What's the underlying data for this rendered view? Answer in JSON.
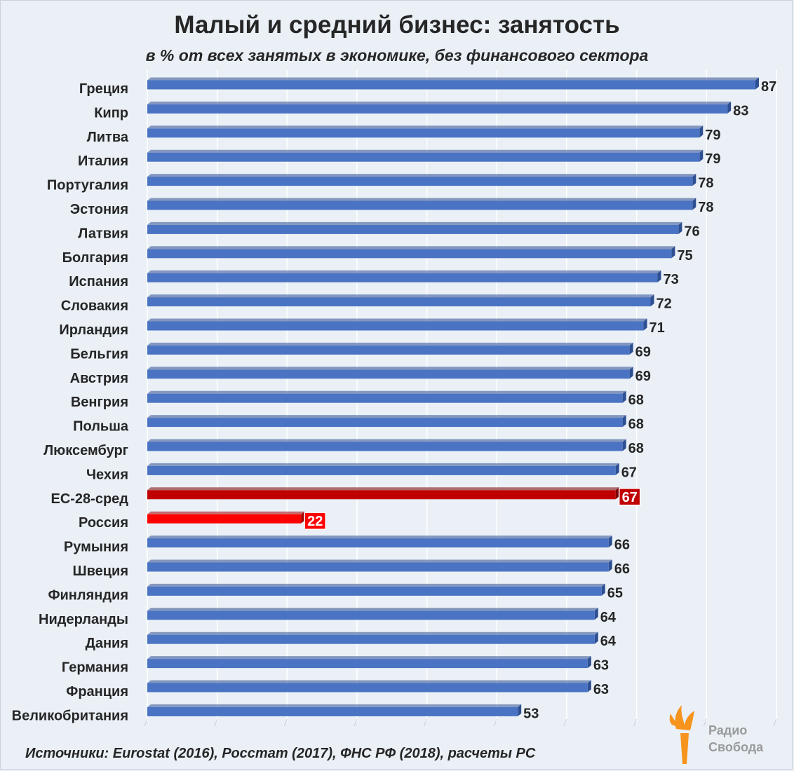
{
  "title": "Малый и средний бизнес: занятость",
  "subtitle": "в % от всех занятых в экономике, без финансового сектора",
  "source": "Источники: Eurostat (2016), Росстат (2017), ФНС РФ (2018), расчеты РС",
  "logo": {
    "line1": "Радио",
    "line2": "Свобода"
  },
  "colors": {
    "default_bar": "#4a73c3",
    "eu_average_bar": "#c00000",
    "russia_bar": "#ff0000",
    "logo_orange": "#f7941d",
    "logo_gray": "#9a9a9a"
  },
  "chart_data": {
    "type": "bar",
    "orientation": "horizontal",
    "title": "Малый и средний бизнес: занятость",
    "subtitle": "в % от всех занятых в экономике, без финансового сектора",
    "xlabel": "",
    "ylabel": "",
    "xlim": [
      0,
      90
    ],
    "grid": true,
    "categories": [
      "Греция",
      "Кипр",
      "Литва",
      "Италия",
      "Португалия",
      "Эстония",
      "Латвия",
      "Болгария",
      "Испания",
      "Словакия",
      "Ирландия",
      "Бельгия",
      "Австрия",
      "Венгрия",
      "Польша",
      "Люксембург",
      "Чехия",
      "ЕС-28-сред",
      "Россия",
      "Румыния",
      "Швеция",
      "Финляндия",
      "Нидерланды",
      "Дания",
      "Германия",
      "Франция",
      "Великобритания"
    ],
    "values": [
      87,
      83,
      79,
      79,
      78,
      78,
      76,
      75,
      73,
      72,
      71,
      69,
      69,
      68,
      68,
      68,
      67,
      67,
      22,
      66,
      66,
      65,
      64,
      64,
      63,
      63,
      53
    ],
    "highlights": {
      "ЕС-28-сред": "eu_average_bar",
      "Россия": "russia_bar"
    }
  }
}
